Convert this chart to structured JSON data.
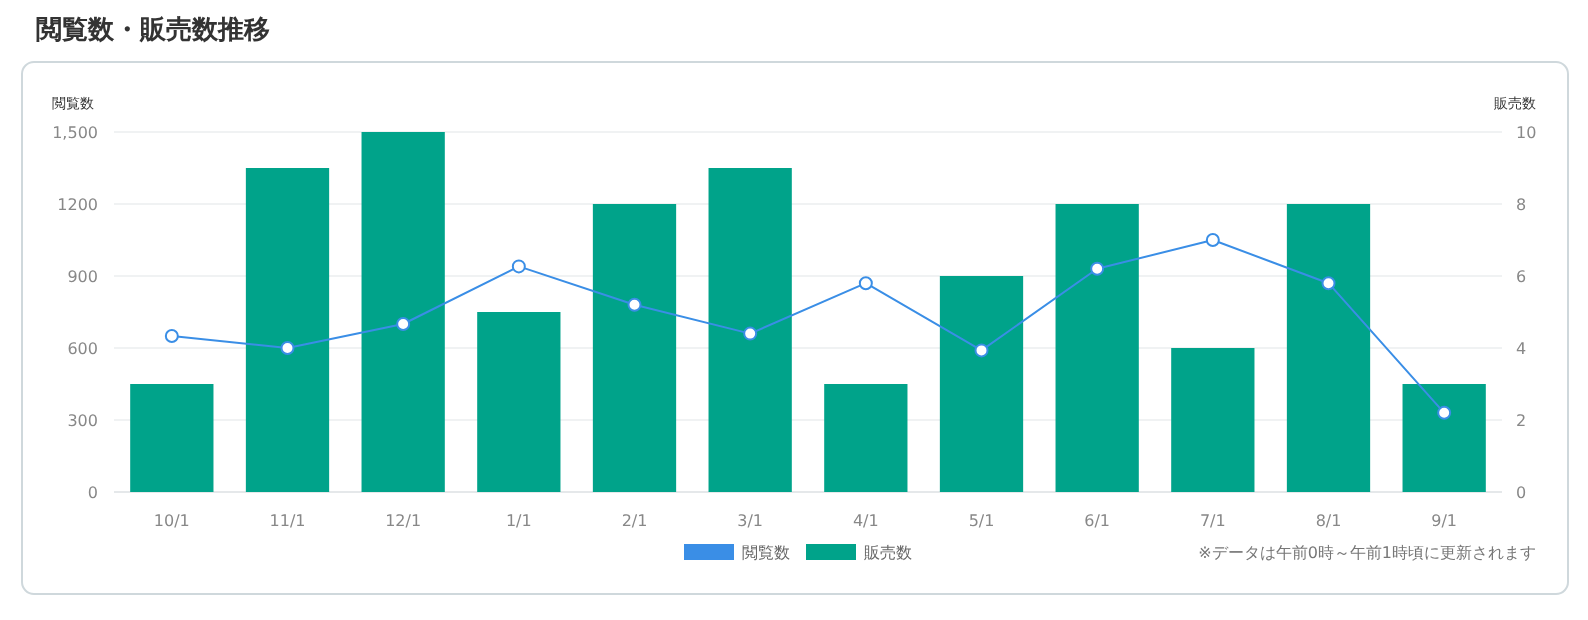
{
  "chart_data": {
    "type": "bar",
    "title": "閲覧数・販売数推移",
    "ylabel": "閲覧数",
    "y2label": "販売数",
    "categories": [
      "10/1",
      "11/1",
      "12/1",
      "1/1",
      "2/1",
      "3/1",
      "4/1",
      "5/1",
      "6/1",
      "7/1",
      "8/1",
      "9/1"
    ],
    "series": [
      {
        "name": "閲覧数",
        "type": "line",
        "color": "#3a8ee6",
        "values": [
          650,
          600,
          700,
          940,
          780,
          660,
          870,
          590,
          930,
          1050,
          870,
          330
        ]
      },
      {
        "name": "販売数",
        "axis": "y2",
        "color": "#00a38a",
        "values": [
          3,
          9,
          10,
          5,
          8,
          9,
          3,
          6,
          8,
          4,
          8,
          3
        ]
      }
    ],
    "ylim": [
      0,
      1500
    ],
    "yticks": [
      0,
      300,
      600,
      900,
      1200,
      {
        "value": 1500,
        "label": "1,500"
      }
    ],
    "y2lim": [
      0,
      10
    ],
    "y2ticks": [
      0,
      2,
      4,
      6,
      8,
      10
    ],
    "grid": "y",
    "marker": "circle",
    "legend": "bottom",
    "annotations": [
      "※データは午前0時～午前1時頃に更新されます"
    ]
  }
}
